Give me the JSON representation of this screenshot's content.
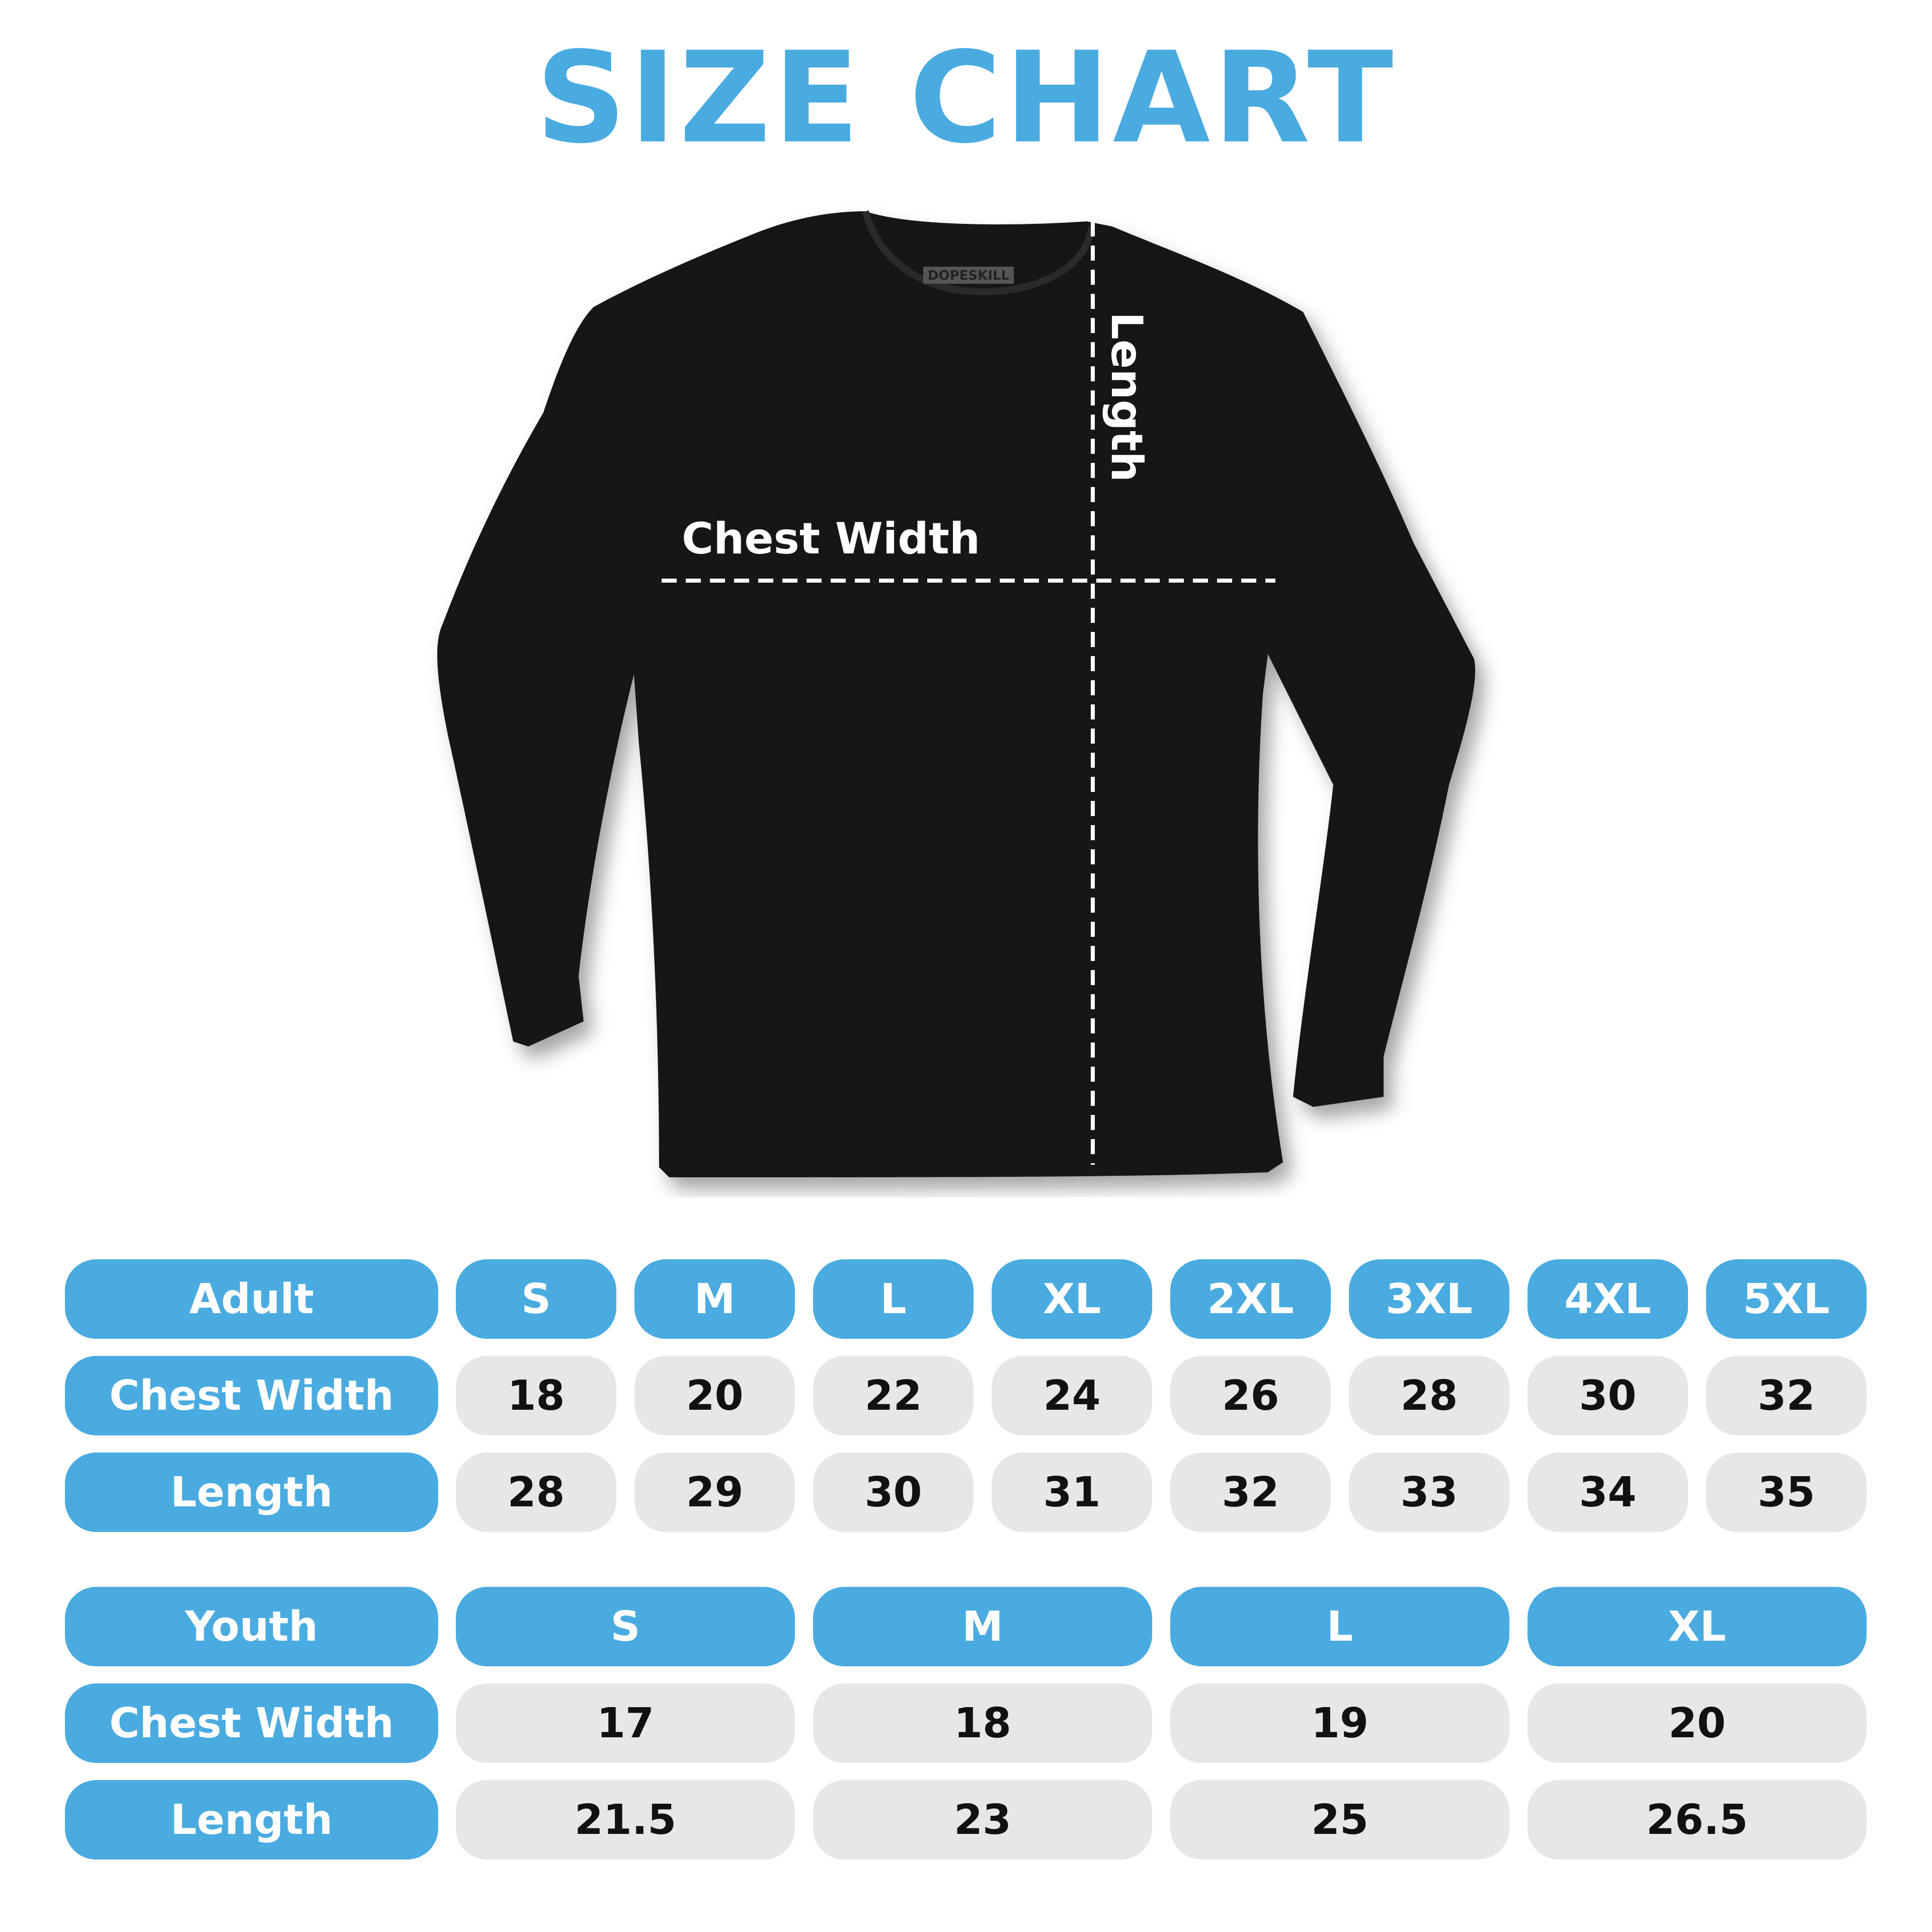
{
  "title": "SIZE CHART",
  "shirt": {
    "brand_tag": "DOPESKILL",
    "chest_label": "Chest Width",
    "length_label": "Length"
  },
  "colors": {
    "accent": "#4AABE0",
    "cell_bg": "#E6E7E9",
    "shirt": "#111111"
  },
  "adult": {
    "header": "Adult",
    "sizes": [
      "S",
      "M",
      "L",
      "XL",
      "2XL",
      "3XL",
      "4XL",
      "5XL"
    ],
    "rows": [
      {
        "label": "Chest Width",
        "values": [
          "18",
          "20",
          "22",
          "24",
          "26",
          "28",
          "30",
          "32"
        ]
      },
      {
        "label": "Length",
        "values": [
          "28",
          "29",
          "30",
          "31",
          "32",
          "33",
          "34",
          "35"
        ]
      }
    ]
  },
  "youth": {
    "header": "Youth",
    "sizes": [
      "S",
      "M",
      "L",
      "XL"
    ],
    "rows": [
      {
        "label": "Chest Width",
        "values": [
          "17",
          "18",
          "19",
          "20"
        ]
      },
      {
        "label": "Length",
        "values": [
          "21.5",
          "23",
          "25",
          "26.5"
        ]
      }
    ]
  }
}
